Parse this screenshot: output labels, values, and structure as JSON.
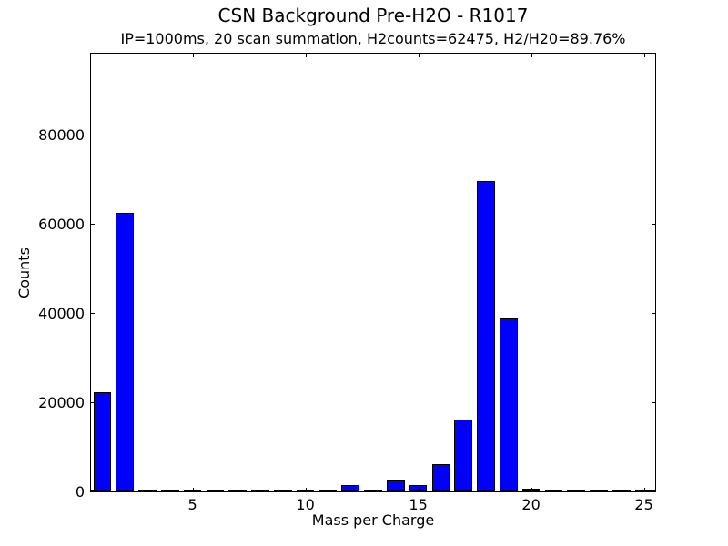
{
  "chart_data": {
    "type": "bar",
    "title": "CSN Background Pre-H2O - R1017",
    "subtitle": "IP=1000ms, 20 scan summation, H2counts=62475, H2/H20=89.76%",
    "xlabel": "Mass per Charge",
    "ylabel": "Counts",
    "xlim": [
      0.5,
      25.5
    ],
    "ylim": [
      0,
      98300
    ],
    "xticks": [
      5,
      10,
      15,
      20,
      25
    ],
    "xtick_labels": [
      "5",
      "10",
      "15",
      "20",
      "25"
    ],
    "yticks": [
      0,
      20000,
      40000,
      60000,
      80000
    ],
    "ytick_labels": [
      "0",
      "20000",
      "40000",
      "60000",
      "80000"
    ],
    "bar_width": 0.8,
    "bar_color": "#0000ff",
    "edge_color": "#000000",
    "grid": false,
    "legend": null,
    "x": [
      1,
      2,
      3,
      4,
      5,
      6,
      7,
      8,
      9,
      10,
      11,
      12,
      13,
      14,
      15,
      16,
      17,
      18,
      19,
      20,
      21,
      22,
      23,
      24,
      25
    ],
    "values": [
      22300,
      62475,
      0,
      0,
      0,
      0,
      0,
      0,
      0,
      0,
      0,
      1500,
      300,
      2400,
      1400,
      6100,
      16200,
      69600,
      39000,
      600,
      0,
      200,
      0,
      0,
      200
    ]
  }
}
